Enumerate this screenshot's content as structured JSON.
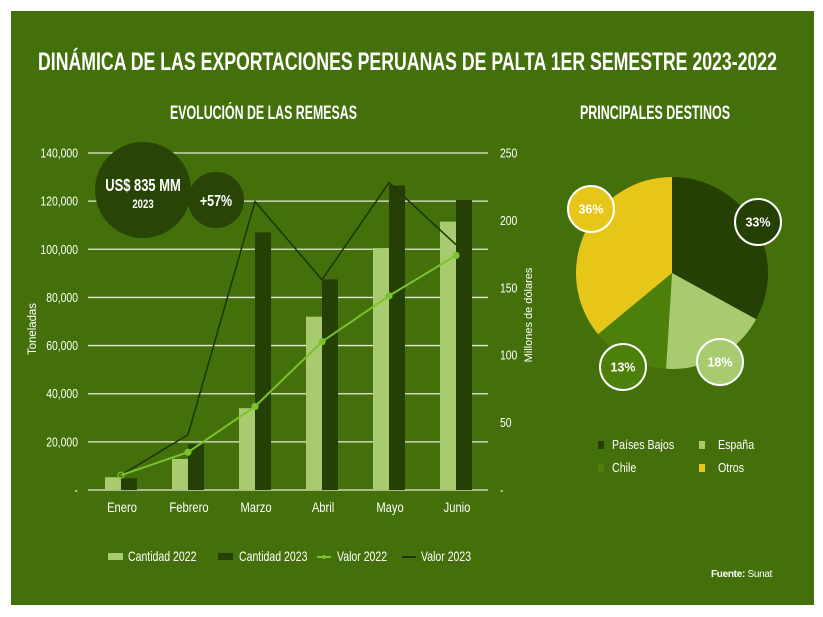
{
  "title": "DINÁMICA DE LAS EXPORTACIONES PERUANAS DE PALTA 1ER SEMESTRE 2023-2022",
  "sections": {
    "remesas": {
      "title": "EVOLUCIÓN DE LAS REMESAS"
    },
    "destinos": {
      "title": "PRINCIPALES DESTINOS"
    }
  },
  "highlights": {
    "amount": "US$ 835 MM",
    "year": "2023",
    "growth": "+57%"
  },
  "source": {
    "label": "Fuente:",
    "value": "Sunat"
  },
  "colors": {
    "page": "#FFFFFF",
    "background": "#43700B",
    "dark_green": "#254004",
    "light_green": "#A8CB70",
    "chile_green": "#4C800B",
    "yellow": "#E6C619",
    "line_2022": "#7CC22C",
    "line_2023": "#1E3404",
    "gridline": "#E4EAD6",
    "bubble": "#284505",
    "text": "#FFFFFF"
  },
  "chart_data": [
    {
      "type": "bar",
      "subtype": "bar-line-combo",
      "title": "EVOLUCIÓN DE LAS REMESAS",
      "categories": [
        "Enero",
        "Febrero",
        "Marzo",
        "Abril",
        "Mayo",
        "Junio"
      ],
      "series": [
        {
          "name": "Cantidad 2022",
          "type": "bar",
          "axis": "left",
          "color_key": "light_green",
          "values": [
            5300,
            12900,
            34000,
            72000,
            100500,
            111500
          ]
        },
        {
          "name": "Cantidad 2023",
          "type": "bar",
          "axis": "left",
          "color_key": "dark_green",
          "values": [
            4900,
            19000,
            107000,
            87500,
            126500,
            120500
          ]
        },
        {
          "name": "Valor 2022",
          "type": "line",
          "axis": "right",
          "marker": true,
          "color_key": "line_2022",
          "values": [
            11,
            28,
            62,
            110,
            144,
            174
          ]
        },
        {
          "name": "Valor 2023",
          "type": "line",
          "axis": "right",
          "marker": false,
          "color_key": "line_2023",
          "values": [
            11,
            41,
            214,
            156,
            228,
            182
          ]
        }
      ],
      "xlabel": "",
      "ylabel": "Toneladas",
      "y2label": "Millones de dólares",
      "ylim": [
        0,
        140000
      ],
      "y2lim": [
        0,
        250
      ],
      "yticks": [
        {
          "value": 0,
          "label": "-"
        },
        {
          "value": 20000,
          "label": "20,000"
        },
        {
          "value": 40000,
          "label": "40,000"
        },
        {
          "value": 60000,
          "label": "60,000"
        },
        {
          "value": 80000,
          "label": "80,000"
        },
        {
          "value": 100000,
          "label": "100,000"
        },
        {
          "value": 120000,
          "label": "120,000"
        },
        {
          "value": 140000,
          "label": "140,000"
        }
      ],
      "y2ticks": [
        {
          "value": 0,
          "label": "-"
        },
        {
          "value": 50,
          "label": "50"
        },
        {
          "value": 100,
          "label": "100"
        },
        {
          "value": 150,
          "label": "150"
        },
        {
          "value": 200,
          "label": "200"
        },
        {
          "value": 250,
          "label": "250"
        }
      ],
      "grid": true,
      "legend": "bottom"
    },
    {
      "type": "pie",
      "title": "PRINCIPALES DESTINOS",
      "slices": [
        {
          "label": "Países Bajos",
          "value": 33,
          "display": "33%",
          "color_key": "dark_green"
        },
        {
          "label": "España",
          "value": 18,
          "display": "18%",
          "color_key": "light_green"
        },
        {
          "label": "Chile",
          "value": 13,
          "display": "13%",
          "color_key": "chile_green"
        },
        {
          "label": "Otros",
          "value": 36,
          "display": "36%",
          "color_key": "yellow"
        }
      ],
      "start": "top",
      "direction": "clockwise",
      "legend": "bottom"
    }
  ]
}
